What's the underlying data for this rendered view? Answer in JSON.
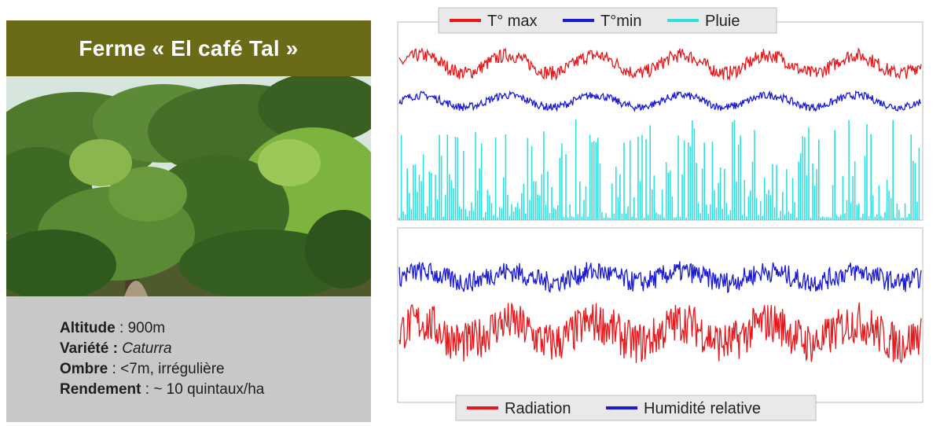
{
  "panel": {
    "title": "Ferme « El café Tal »",
    "info": [
      {
        "label": "Altitude",
        "sep": " : ",
        "value": "900m",
        "italic": false
      },
      {
        "label": "Variété",
        "sep": " : ",
        "value": "Caturra",
        "italic": true
      },
      {
        "label": "Ombre",
        "sep": " : ",
        "value": "<7m, irrégulière",
        "italic": false
      },
      {
        "label": "Rendement",
        "sep": " : ",
        "value": "~ 10 quintaux/ha",
        "italic": false
      }
    ]
  },
  "colors": {
    "banner": "#6b6a17",
    "info_bg": "#c8c8c8",
    "red": "#e8191c",
    "blue": "#1a1ad6",
    "cyan": "#2fe0e0"
  },
  "chart_data": [
    {
      "type": "line",
      "series": [
        {
          "name": "T° max",
          "color": "#e8191c",
          "baseline": 31.5,
          "amplitude": 1.8,
          "noise": 1.4
        },
        {
          "name": "T°min",
          "color": "#1a1ad6",
          "baseline": 24,
          "amplitude": 1.2,
          "noise": 0.8
        },
        {
          "name": "Pluie",
          "color": "#2fe0e0",
          "kind": "rain"
        }
      ],
      "y_left_range": [
        0,
        40
      ],
      "y_right_range": [
        0,
        2000
      ],
      "legend": "top",
      "grid": false
    },
    {
      "type": "line",
      "series": [
        {
          "name": "Radiation",
          "color": "#e8191c",
          "baseline": 40,
          "amplitude": 6,
          "noise": 12
        },
        {
          "name": "Humidité relative",
          "color": "#1a1ad6",
          "baseline": 72,
          "amplitude": 3,
          "noise": 6
        }
      ],
      "y_left_range": [
        0,
        100
      ],
      "legend": "bottom",
      "grid": false
    }
  ]
}
